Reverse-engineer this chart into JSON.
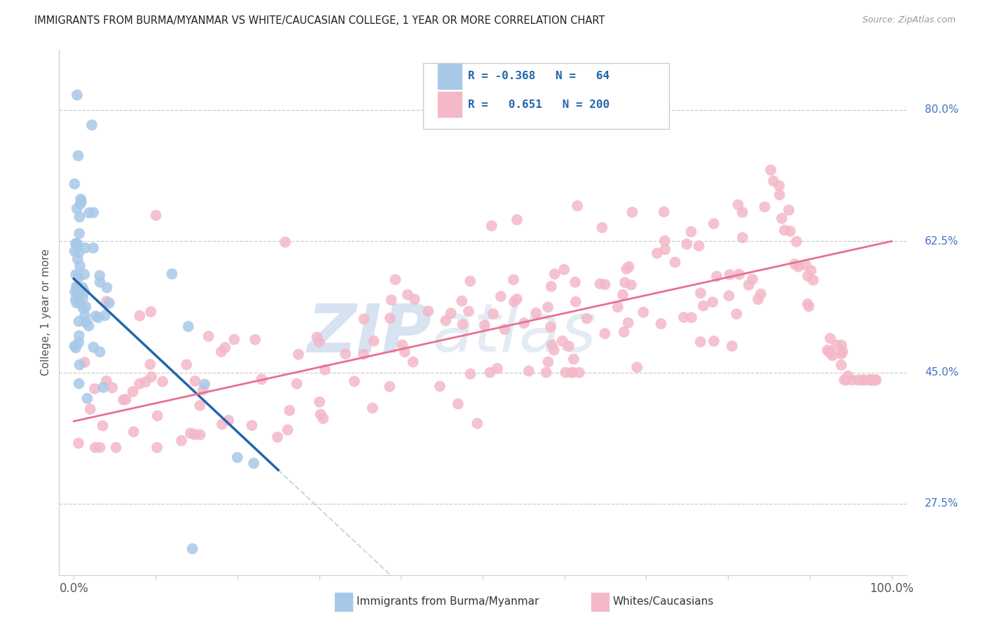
{
  "title": "IMMIGRANTS FROM BURMA/MYANMAR VS WHITE/CAUCASIAN COLLEGE, 1 YEAR OR MORE CORRELATION CHART",
  "source": "Source: ZipAtlas.com",
  "ylabel": "College, 1 year or more",
  "ytick_labels": [
    "27.5%",
    "45.0%",
    "62.5%",
    "80.0%"
  ],
  "ytick_values": [
    0.275,
    0.45,
    0.625,
    0.8
  ],
  "legend_label1": "Immigrants from Burma/Myanmar",
  "legend_label2": "Whites/Caucasians",
  "r1": -0.368,
  "n1": 64,
  "r2": 0.651,
  "n2": 200,
  "color_blue": "#a8c8e8",
  "color_blue_line": "#2166ac",
  "color_pink": "#f4b8c8",
  "color_pink_line": "#e87090",
  "color_watermark": "#d0dff0",
  "background_color": "#ffffff",
  "blue_line_x0": 0.0,
  "blue_line_y0": 0.575,
  "blue_line_x1": 0.25,
  "blue_line_y1": 0.32,
  "blue_line_dash_x1": 0.6,
  "pink_line_x0": 0.0,
  "pink_line_y0": 0.385,
  "pink_line_x1": 1.0,
  "pink_line_y1": 0.625,
  "xmin": 0.0,
  "xmax": 1.0,
  "ymin": 0.18,
  "ymax": 0.88
}
